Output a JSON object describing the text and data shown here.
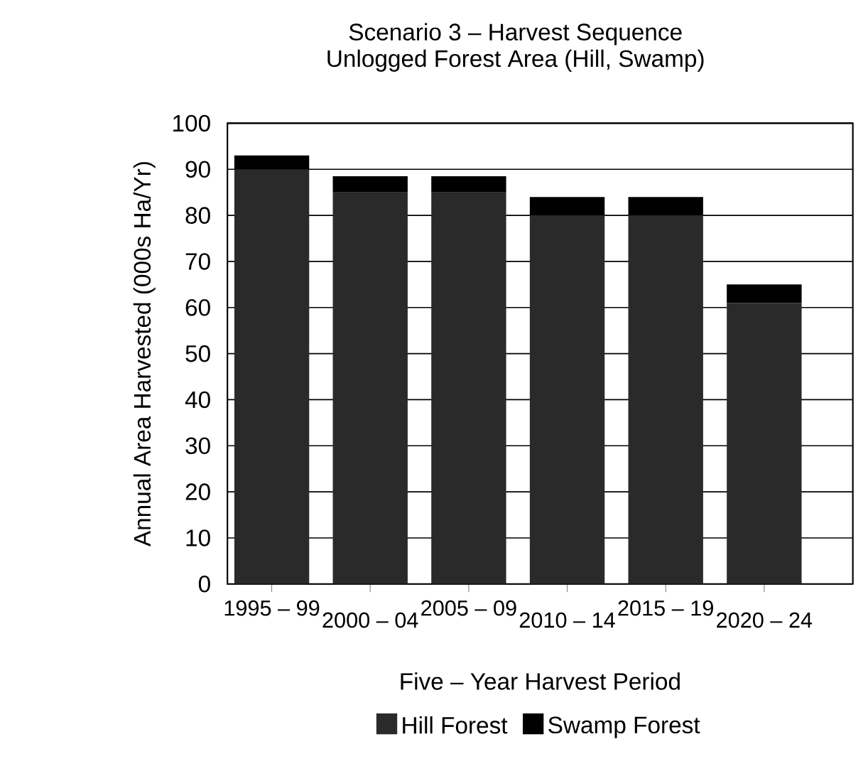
{
  "chart_data": {
    "type": "bar",
    "stacked": true,
    "title": "Scenario 3 – Harvest Sequence",
    "subtitle": "Unlogged Forest Area (Hill, Swamp)",
    "xlabel": "Five – Year Harvest Period",
    "ylabel": "Annual Area Harvested (000s Ha/Yr)",
    "categories": [
      "1995 – 99",
      "2000 – 04",
      "2005 – 09",
      "2010 – 14",
      "2015 – 19",
      "2020 – 24"
    ],
    "series": [
      {
        "name": "Hill Forest",
        "color": "#2a2a2a",
        "values": [
          90,
          85,
          85,
          80,
          80,
          61
        ]
      },
      {
        "name": "Swamp Forest",
        "color": "#000000",
        "values": [
          3,
          3.5,
          3.5,
          4,
          4,
          4
        ]
      }
    ],
    "ylim": [
      0,
      100
    ],
    "yticks": [
      0,
      10,
      20,
      30,
      40,
      50,
      60,
      70,
      80,
      90,
      100
    ],
    "grid": "y",
    "legend": "bottom"
  }
}
